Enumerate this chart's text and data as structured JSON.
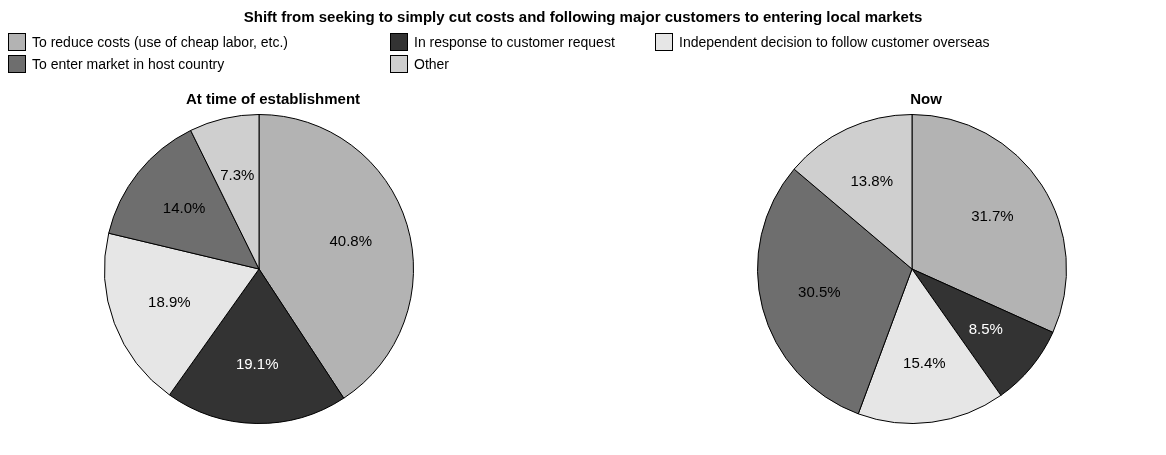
{
  "chart_data": [
    {
      "type": "pie",
      "subtitle": "Shift from seeking to simply cut costs and following major customers to entering local markets",
      "title": "At time of establishment",
      "categories": [
        "To reduce costs (use of cheap labor, etc.)",
        "In response to customer request",
        "Independent decision to follow customer overseas",
        "To enter market in host country",
        "Other"
      ],
      "values": [
        40.8,
        19.1,
        18.9,
        14.0,
        7.3
      ],
      "value_labels": [
        "40.8%",
        "19.1%",
        "18.9%",
        "14.0%",
        "7.3%"
      ],
      "colors": [
        "#b3b3b3",
        "#333333",
        "#e6e6e6",
        "#6e6e6e",
        "#cfcfcf"
      ],
      "legend": "top"
    },
    {
      "type": "pie",
      "title": "Now",
      "categories": [
        null,
        null,
        null,
        null,
        null
      ],
      "values": [
        31.7,
        8.5,
        15.4,
        30.5,
        13.8
      ],
      "value_labels": [
        "31.7%",
        "8.5%",
        "15.4%",
        "30.5%",
        "13.8%"
      ],
      "colors": [
        "#b3b3b3",
        "#333333",
        "#e6e6e6",
        "#6e6e6e",
        "#cfcfcf"
      ]
    }
  ]
}
